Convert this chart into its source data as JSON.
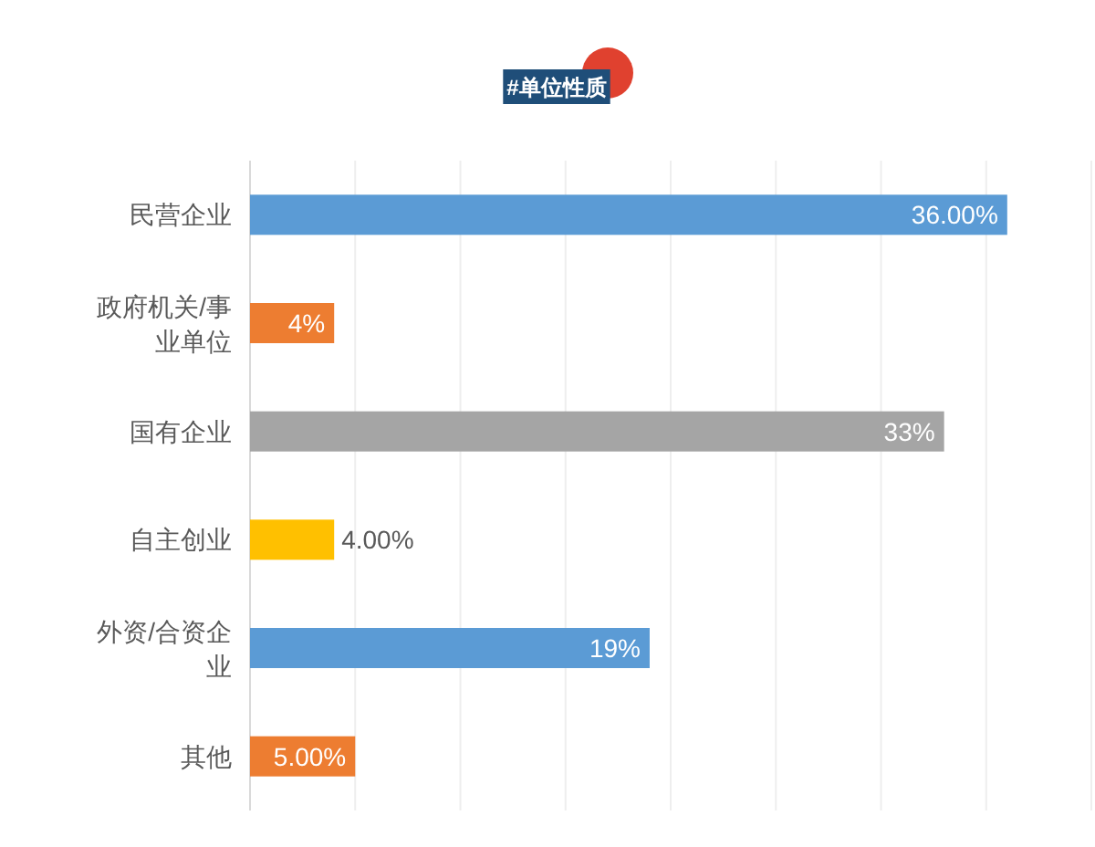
{
  "chart_data": {
    "type": "bar",
    "orientation": "horizontal",
    "title": "#单位性质",
    "categories": [
      "民营企业",
      "政府机关/事业单位",
      "国有企业",
      "自主创业",
      "外资/合资企业",
      "其他"
    ],
    "values": [
      36,
      4,
      33,
      4,
      19,
      5
    ],
    "colors": [
      "#5b9bd5",
      "#ed7d31",
      "#a5a5a5",
      "#ffc000",
      "#5b9bd5",
      "#ed7d31"
    ],
    "value_labels": [
      "36.00%",
      "4%",
      "33%",
      "4.00%",
      "19%",
      "5.00%"
    ],
    "xlim": [
      0,
      40
    ],
    "xticks": [
      {
        "value": 0,
        "label": null
      },
      {
        "value": 5,
        "label": null
      },
      {
        "value": 10,
        "label": null
      },
      {
        "value": 15,
        "label": null
      },
      {
        "value": 20,
        "label": null
      },
      {
        "value": 25,
        "label": null
      },
      {
        "value": 30,
        "label": null
      },
      {
        "value": 35,
        "label": null
      },
      {
        "value": 40,
        "label": null
      }
    ],
    "grid": "x",
    "tick_labels": "y"
  }
}
